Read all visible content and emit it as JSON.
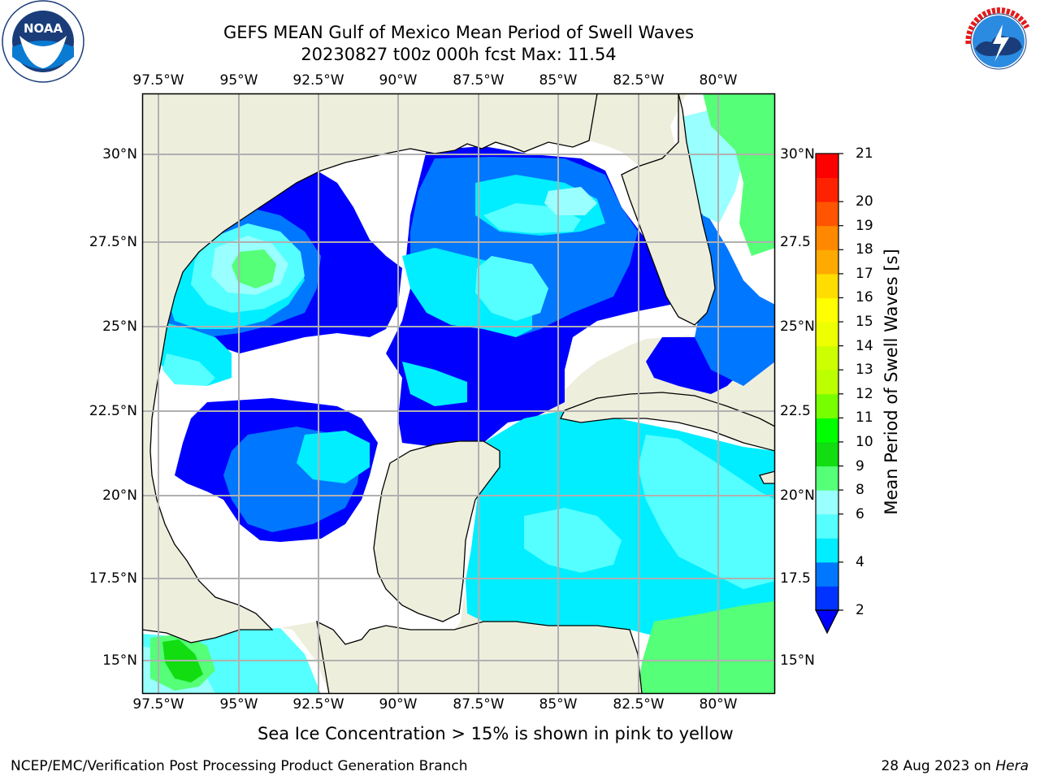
{
  "header": {
    "title_line1": "GEFS MEAN Gulf of Mexico Mean Period of Swell Waves",
    "title_line2": "20230827 t00z 000h fcst   Max: 11.54"
  },
  "logos": {
    "left": "NOAA",
    "left_ring_text": "NATIONAL OCEANIC AND ATMOSPHERIC ADMINISTRATION · U.S. DEPARTMENT OF COMMERCE",
    "right_ring_text": "NATIONAL WEATHER SERVICE"
  },
  "map": {
    "lon_ticks": [
      "97.5°W",
      "95°W",
      "92.5°W",
      "90°W",
      "87.5°W",
      "85°W",
      "82.5°W",
      "80°W"
    ],
    "lat_ticks_left": [
      "30°N",
      "27.5°N",
      "25°N",
      "22.5°N",
      "20°N",
      "17.5°N",
      "15°N"
    ],
    "lat_ticks_right": [
      "30°N",
      "27.5",
      "25°N",
      "22.5",
      "20°N",
      "17.5",
      "15°N"
    ],
    "colors": {
      "land": "#eeeedd",
      "no_data": "#ffffff",
      "grid": "#b0b0b0",
      "coast": "#000000"
    }
  },
  "colorbar": {
    "label": "Mean Period of Swell Waves [s]",
    "ticks": [
      "2",
      "4",
      "6",
      "8",
      "9",
      "10",
      "11",
      "12",
      "13",
      "14",
      "15",
      "16",
      "17",
      "18",
      "19",
      "20",
      "21"
    ],
    "colors": [
      "#0033ff",
      "#0077ff",
      "#00eeff",
      "#55ffff",
      "#99ffff",
      "#55ff77",
      "#11dd11",
      "#00ff00",
      "#77ff00",
      "#bbff00",
      "#ccff00",
      "#eeff00",
      "#ffff00",
      "#ffdd00",
      "#ffaa00",
      "#ff8800",
      "#ff5500",
      "#ff2200",
      "#ff0000"
    ],
    "under_color": "#0000ff"
  },
  "note": "Sea Ice Concentration > 15% is shown in pink to yellow",
  "footer": {
    "left": "NCEP/EMC/Verification Post Processing Product Generation Branch",
    "date": "28 Aug 2023 on ",
    "host": "Hera"
  }
}
